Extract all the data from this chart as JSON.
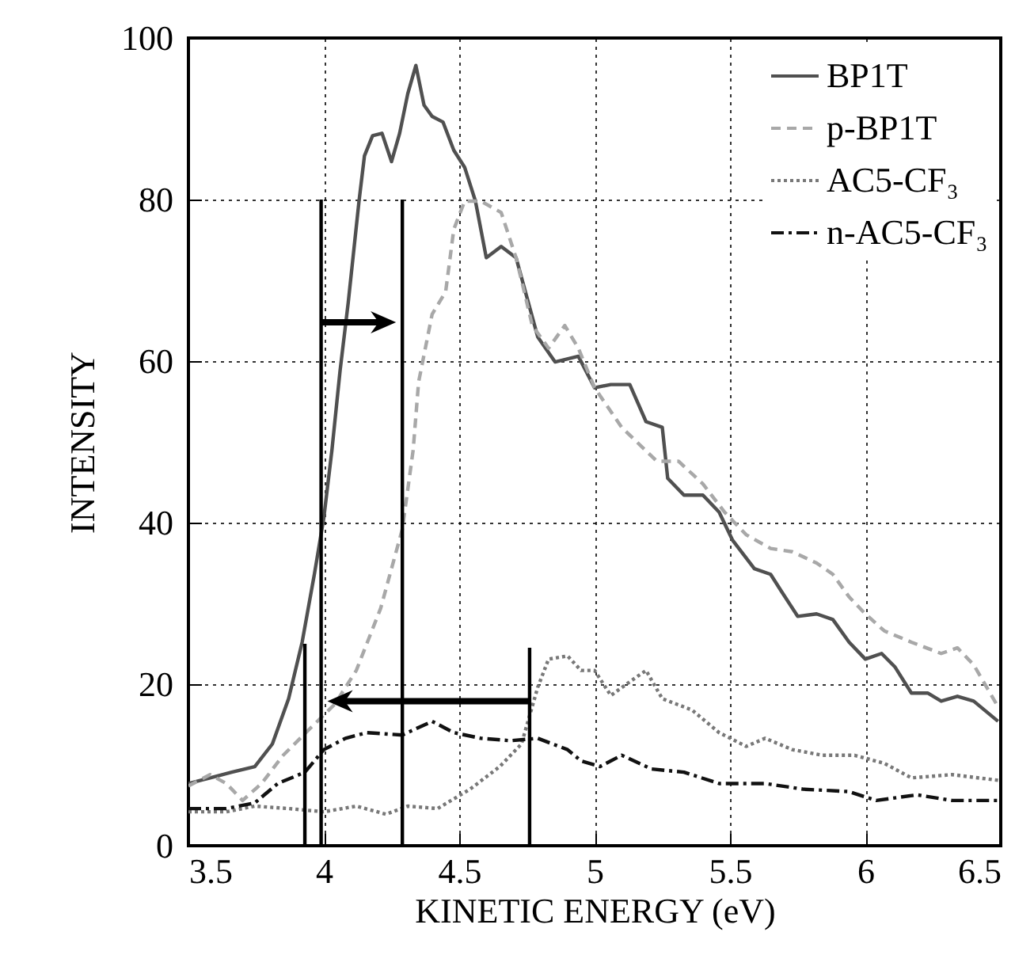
{
  "chart_data": {
    "type": "line",
    "xlabel": "KINETIC ENERGY (eV)",
    "ylabel": "INTENSITY",
    "xlim": [
      3.5,
      6.5
    ],
    "xticks": [
      3.5,
      4,
      4.5,
      5,
      5.5,
      6,
      6.5
    ],
    "ylim": [
      0,
      100
    ],
    "yticks": [
      0,
      20,
      40,
      60,
      80,
      100
    ],
    "grid": true,
    "legend": "top right",
    "series": [
      {
        "name": "BP1T",
        "color": "#505050",
        "line_style": "solid",
        "x": [
          3.5,
          3.58,
          3.66,
          3.745,
          3.81,
          3.87,
          3.92,
          3.965,
          4.0,
          4.03,
          4.06,
          4.09,
          4.13,
          4.15,
          4.18,
          4.215,
          4.25,
          4.28,
          4.31,
          4.34,
          4.37,
          4.4,
          4.44,
          4.48,
          4.52,
          4.56,
          4.6,
          4.655,
          4.71,
          4.75,
          4.79,
          4.854,
          4.94,
          5.0,
          5.06,
          5.13,
          5.19,
          5.25,
          5.27,
          5.33,
          5.4,
          5.46,
          5.51,
          5.59,
          5.65,
          5.69,
          5.75,
          5.82,
          5.88,
          5.94,
          6.0,
          6.06,
          6.11,
          6.17,
          6.23,
          6.28,
          6.34,
          6.4,
          6.49
        ],
        "values": [
          7.7,
          8.4,
          9.1,
          9.8,
          12.6,
          18.2,
          25.2,
          33.6,
          40.6,
          49,
          58.8,
          67.2,
          79.8,
          85.4,
          87.9,
          88.2,
          84.7,
          88.2,
          93.1,
          96.6,
          91.7,
          90.3,
          89.6,
          86.1,
          84,
          79.8,
          72.8,
          74.2,
          72.8,
          67.9,
          63,
          59.9,
          60.6,
          56.7,
          57.1,
          57.1,
          52.5,
          51.8,
          45.5,
          43.4,
          43.4,
          41.3,
          37.8,
          34.3,
          33.6,
          31.5,
          28.4,
          28.7,
          28,
          25.2,
          23.1,
          23.8,
          22.1,
          18.9,
          18.9,
          17.9,
          18.5,
          17.9,
          15.4
        ]
      },
      {
        "name": "p-BP1T",
        "color": "#a8a8a8",
        "line_style": "dashed",
        "x": [
          3.5,
          3.58,
          3.64,
          3.7,
          3.77,
          3.85,
          3.955,
          4.04,
          4.12,
          4.21,
          4.29,
          4.33,
          4.35,
          4.4,
          4.45,
          4.48,
          4.52,
          4.58,
          4.655,
          4.71,
          4.77,
          4.83,
          4.89,
          4.94,
          5.0,
          5.1,
          5.23,
          5.31,
          5.4,
          5.48,
          5.56,
          5.65,
          5.73,
          5.82,
          5.88,
          5.94,
          6.0,
          6.07,
          6.17,
          6.28,
          6.34,
          6.4,
          6.49
        ],
        "values": [
          7.4,
          8.8,
          7.7,
          5.6,
          7.7,
          11.2,
          14.7,
          17.5,
          21.7,
          29.4,
          39.2,
          49,
          57.4,
          65.8,
          68.6,
          76.3,
          79.8,
          79.8,
          78.4,
          72.8,
          64.4,
          61.6,
          64.4,
          61.6,
          56.7,
          51.8,
          47.6,
          47.6,
          44.8,
          41.3,
          38.5,
          36.8,
          36.4,
          35,
          33.6,
          30.8,
          28.7,
          26.6,
          25.2,
          23.8,
          24.5,
          22.4,
          17.2
        ]
      },
      {
        "name": "AC5-CF₃",
        "color": "#787878",
        "line_style": "dotted",
        "x": [
          3.5,
          3.64,
          3.745,
          3.87,
          4.0,
          4.12,
          4.23,
          4.31,
          4.42,
          4.54,
          4.65,
          4.73,
          4.79,
          4.83,
          4.9,
          4.95,
          5.0,
          5.06,
          5.13,
          5.19,
          5.25,
          5.36,
          5.46,
          5.56,
          5.63,
          5.73,
          5.84,
          5.96,
          6.07,
          6.17,
          6.32,
          6.49
        ],
        "values": [
          4.2,
          4.2,
          4.9,
          4.6,
          4.2,
          4.9,
          3.9,
          4.9,
          4.6,
          7,
          9.8,
          12.6,
          19.6,
          23.1,
          23.5,
          21.7,
          21.7,
          18.6,
          20.3,
          21.7,
          18.2,
          16.8,
          14,
          12.3,
          13.3,
          11.9,
          11.2,
          11.2,
          10.2,
          8.4,
          8.8,
          8.1
        ]
      },
      {
        "name": "n-AC5-CF₃",
        "color": "#111111",
        "line_style": "dashdot",
        "x": [
          3.5,
          3.64,
          3.745,
          3.83,
          3.93,
          4.0,
          4.08,
          4.16,
          4.29,
          4.4,
          4.48,
          4.58,
          4.69,
          4.79,
          4.9,
          4.95,
          5.02,
          5.1,
          5.21,
          5.33,
          5.46,
          5.63,
          5.77,
          5.94,
          6.04,
          6.19,
          6.32,
          6.49
        ],
        "values": [
          4.6,
          4.6,
          5.3,
          7.7,
          9.1,
          11.9,
          13.3,
          14,
          13.7,
          15.4,
          14,
          13.3,
          13,
          13.3,
          11.9,
          10.5,
          9.8,
          11.2,
          9.5,
          9.1,
          7.7,
          7.7,
          7,
          6.7,
          5.6,
          6.3,
          5.6,
          5.6
        ]
      },
      {
        "color": "#000000",
        "x": [
          3.93,
          3.93
        ],
        "values": [
          0,
          25
        ]
      },
      {
        "color": "#000000",
        "x": [
          3.99,
          3.99
        ],
        "values": [
          0,
          80
        ]
      },
      {
        "color": "#000000",
        "x": [
          4.29,
          4.29
        ],
        "values": [
          0,
          80
        ]
      },
      {
        "color": "#000000",
        "x": [
          4.76,
          4.76
        ],
        "values": [
          0,
          24.5
        ]
      }
    ]
  }
}
